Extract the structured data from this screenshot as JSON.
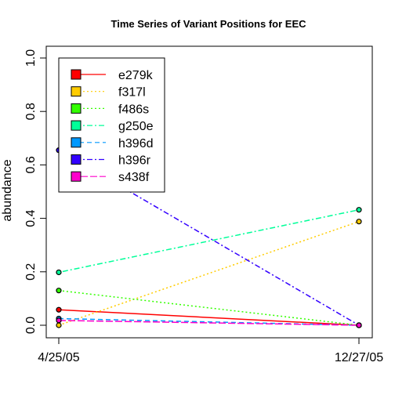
{
  "chart_data": {
    "type": "line",
    "title": "Time Series of Variant Positions for EEC",
    "xlabel": "",
    "ylabel": "abundance",
    "categories": [
      "4/25/05",
      "12/27/05"
    ],
    "ylim": [
      0,
      1.0
    ],
    "yticks": [
      "0.0",
      "0.2",
      "0.4",
      "0.6",
      "0.8",
      "1.0"
    ],
    "legend_position": "top-left",
    "grid": false,
    "series": [
      {
        "name": "e279k",
        "values": [
          0.058,
          0.0
        ],
        "color": "#ff0000",
        "dash": "solid"
      },
      {
        "name": "f317l",
        "values": [
          0.0,
          0.388
        ],
        "color": "#ffcc00",
        "dash": "dotted"
      },
      {
        "name": "f486s",
        "values": [
          0.13,
          0.0
        ],
        "color": "#33ff00",
        "dash": "dotted"
      },
      {
        "name": "g250e",
        "values": [
          0.198,
          0.432
        ],
        "color": "#00ff99",
        "dash": "dotdash"
      },
      {
        "name": "h396d",
        "values": [
          0.025,
          0.0
        ],
        "color": "#0099ff",
        "dash": "dashed"
      },
      {
        "name": "h396r",
        "values": [
          0.655,
          0.0
        ],
        "color": "#3300ff",
        "dash": "dotdash"
      },
      {
        "name": "s438f",
        "values": [
          0.018,
          0.0
        ],
        "color": "#ff00cc",
        "dash": "longdash"
      }
    ]
  }
}
